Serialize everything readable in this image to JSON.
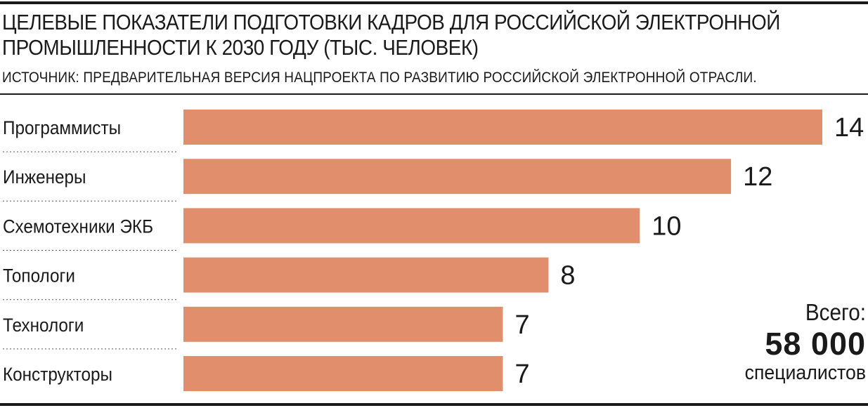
{
  "header": {
    "title": "ЦЕЛЕВЫЕ ПОКАЗАТЕЛИ ПОДГОТОВКИ КАДРОВ ДЛЯ РОССИЙСКОЙ ЭЛЕКТРОННОЙ ПРОМЫШЛЕННОСТИ  К 2030 ГОДУ (ТЫС. ЧЕЛОВЕК)",
    "source": "ИСТОЧНИК: ПРЕДВАРИТЕЛЬНАЯ ВЕРСИЯ НАЦПРОЕКТА ПО РАЗВИТИЮ РОССИЙСКОЙ ЭЛЕКТРОННОЙ ОТРАСЛИ."
  },
  "summary": {
    "label": "Всего:",
    "value": "58 000",
    "unit": "специалистов"
  },
  "colors": {
    "bar": "#e08e6b",
    "text": "#1a1a1a",
    "separator": "#555555"
  },
  "chart_data": {
    "type": "bar",
    "orientation": "horizontal",
    "title": "ЦЕЛЕВЫЕ ПОКАЗАТЕЛИ ПОДГОТОВКИ КАДРОВ ДЛЯ РОССИЙСКОЙ ЭЛЕКТРОННОЙ ПРОМЫШЛЕННОСТИ  К 2030 ГОДУ (ТЫС. ЧЕЛОВЕК)",
    "categories": [
      "Программисты",
      "Инженеры",
      "Схемотехники ЭКБ",
      "Топологи",
      "Технологи",
      "Конструкторы"
    ],
    "values": [
      14,
      12,
      10,
      8,
      7,
      7
    ],
    "data_labels": [
      "14",
      "12",
      "10",
      "8",
      "7",
      "7"
    ],
    "xlim": [
      0,
      14
    ],
    "grid": false,
    "legend": "none"
  }
}
